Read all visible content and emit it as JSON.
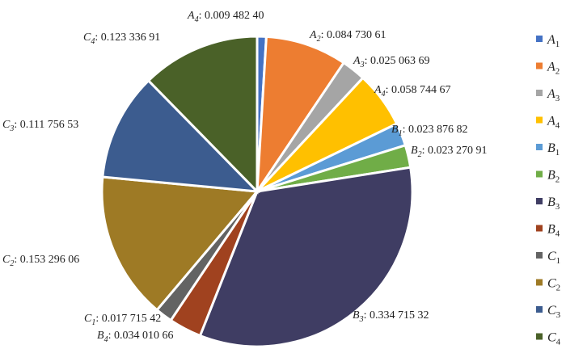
{
  "chart_data": {
    "type": "pie",
    "title": "",
    "legend_position": "right",
    "slices": [
      {
        "name": "A",
        "sub": "1",
        "value": 0.0094824,
        "label": "",
        "color": "#4472c4"
      },
      {
        "name": "A",
        "sub": "2",
        "value": 0.08473061,
        "label": "0.084 730 61",
        "color": "#ed7d31"
      },
      {
        "name": "A",
        "sub": "3",
        "value": 0.02506369,
        "label": "0.025 063 69",
        "color": "#a5a5a5"
      },
      {
        "name": "A",
        "sub": "4",
        "value": 0.05874467,
        "label": "0.058 744 67",
        "color": "#ffc000"
      },
      {
        "name": "B",
        "sub": "1",
        "value": 0.02387682,
        "label": "0.023 876 82",
        "color": "#5b9bd5"
      },
      {
        "name": "B",
        "sub": "2",
        "value": 0.02327091,
        "label": "0.023 270 91",
        "color": "#70ad47"
      },
      {
        "name": "B",
        "sub": "3",
        "value": 0.33471532,
        "label": "0.334 715 32",
        "color": "#3f3d63"
      },
      {
        "name": "B",
        "sub": "4",
        "value": 0.03401066,
        "label": "0.034 010 66",
        "color": "#a0421f"
      },
      {
        "name": "C",
        "sub": "1",
        "value": 0.01771542,
        "label": "0.017 715 42",
        "color": "#636363"
      },
      {
        "name": "C",
        "sub": "2",
        "value": 0.15329606,
        "label": "0.153 296 06",
        "color": "#9e7a25"
      },
      {
        "name": "C",
        "sub": "3",
        "value": 0.11175653,
        "label": "0.111 756 53",
        "color": "#3c5c8f"
      },
      {
        "name": "C",
        "sub": "4",
        "value": 0.12333691,
        "label": "0.123 336 91",
        "color": "#4a6128"
      }
    ],
    "extra_label": {
      "name": "A",
      "sub": "4",
      "text": "0.009 482 40"
    }
  }
}
